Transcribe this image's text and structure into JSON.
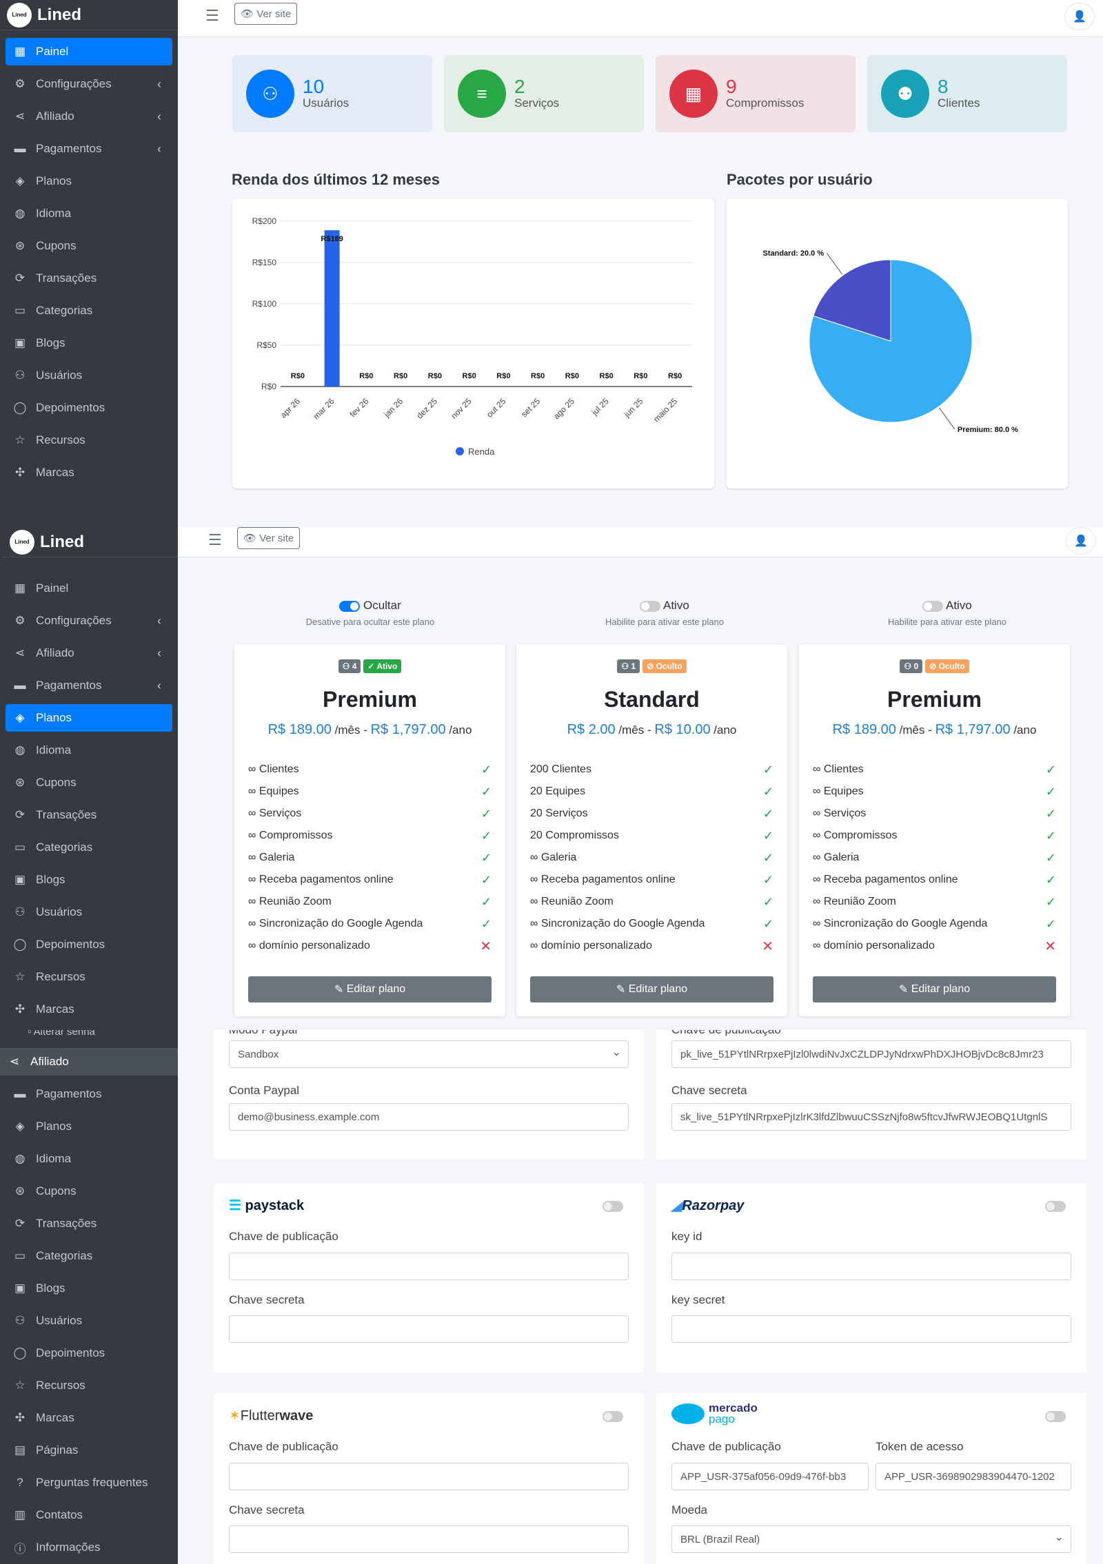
{
  "brand": {
    "logo_text": "Lined",
    "name": "Lined"
  },
  "topbar": {
    "view_site": "Ver site"
  },
  "sidebar1": [
    {
      "label": "Painel",
      "icon": "dashboard-icon",
      "active": true
    },
    {
      "label": "Configurações",
      "icon": "gear-icon",
      "arrow": "‹"
    },
    {
      "label": "Afiliado",
      "icon": "share-icon",
      "arrow": "‹"
    },
    {
      "label": "Pagamentos",
      "icon": "card-icon",
      "arrow": "‹"
    },
    {
      "label": "Planos",
      "icon": "layers-icon"
    },
    {
      "label": "Idioma",
      "icon": "globe-icon"
    },
    {
      "label": "Cupons",
      "icon": "coupon-icon"
    },
    {
      "label": "Transações",
      "icon": "transactions-icon"
    },
    {
      "label": "Categorias",
      "icon": "folder-icon"
    },
    {
      "label": "Blogs",
      "icon": "image-icon"
    },
    {
      "label": "Usuários",
      "icon": "users-icon"
    },
    {
      "label": "Depoimentos",
      "icon": "chat-icon"
    },
    {
      "label": "Recursos",
      "icon": "star-icon"
    },
    {
      "label": "Marcas",
      "icon": "brand-icon"
    }
  ],
  "sidebar2": [
    {
      "label": "Painel",
      "icon": "dashboard-icon"
    },
    {
      "label": "Configurações",
      "icon": "gear-icon",
      "arrow": "‹"
    },
    {
      "label": "Afiliado",
      "icon": "share-icon",
      "arrow": "‹"
    },
    {
      "label": "Pagamentos",
      "icon": "card-icon",
      "arrow": "‹"
    },
    {
      "label": "Planos",
      "icon": "layers-icon",
      "active": true
    },
    {
      "label": "Idioma",
      "icon": "globe-icon"
    },
    {
      "label": "Cupons",
      "icon": "coupon-icon"
    },
    {
      "label": "Transações",
      "icon": "transactions-icon"
    },
    {
      "label": "Categorias",
      "icon": "folder-icon"
    },
    {
      "label": "Blogs",
      "icon": "image-icon"
    },
    {
      "label": "Usuários",
      "icon": "users-icon"
    },
    {
      "label": "Depoimentos",
      "icon": "chat-icon"
    },
    {
      "label": "Recursos",
      "icon": "star-icon"
    },
    {
      "label": "Marcas",
      "icon": "brand-icon"
    }
  ],
  "sidebar3_top": "Alterar senha",
  "sidebar3": [
    {
      "label": "Afiliado",
      "icon": "share-icon",
      "highlight": true
    },
    {
      "label": "Pagamentos",
      "icon": "card-icon"
    },
    {
      "label": "Planos",
      "icon": "layers-icon"
    },
    {
      "label": "Idioma",
      "icon": "globe-icon"
    },
    {
      "label": "Cupons",
      "icon": "coupon-icon"
    },
    {
      "label": "Transações",
      "icon": "transactions-icon"
    },
    {
      "label": "Categorias",
      "icon": "folder-icon"
    },
    {
      "label": "Blogs",
      "icon": "image-icon"
    },
    {
      "label": "Usuários",
      "icon": "users-icon"
    },
    {
      "label": "Depoimentos",
      "icon": "chat-icon"
    },
    {
      "label": "Recursos",
      "icon": "star-icon"
    },
    {
      "label": "Marcas",
      "icon": "brand-icon"
    },
    {
      "label": "Páginas",
      "icon": "pages-icon"
    },
    {
      "label": "Perguntas frequentes",
      "icon": "question-icon"
    },
    {
      "label": "Contatos",
      "icon": "contacts-icon"
    },
    {
      "label": "Informações",
      "icon": "info-icon"
    }
  ],
  "stats": [
    {
      "value": "10",
      "label": "Usuários",
      "icon": "users-icon",
      "color": "#007bff",
      "bg": "#e3eaf8"
    },
    {
      "value": "2",
      "label": "Serviços",
      "icon": "list-icon",
      "color": "#28a745",
      "bg": "#e3efe6"
    },
    {
      "value": "9",
      "label": "Compromissos",
      "icon": "calendar-icon",
      "color": "#dc3545",
      "bg": "#f2e2e5"
    },
    {
      "value": "8",
      "label": "Clientes",
      "icon": "clients-icon",
      "color": "#17a2b8",
      "bg": "#ddecf0"
    }
  ],
  "income_title": "Renda dos últimos 12 meses",
  "packages_title": "Pacotes por usuário",
  "chart_data": [
    {
      "type": "bar",
      "categories": [
        "apr 26",
        "mar 26",
        "fev 26",
        "jan 26",
        "dez 25",
        "nov 25",
        "out 25",
        "set 25",
        "ago 25",
        "jul 25",
        "jun 25",
        "maio 25"
      ],
      "values": [
        0,
        189,
        0,
        0,
        0,
        0,
        0,
        0,
        0,
        0,
        0,
        0
      ],
      "data_labels": [
        "R$0",
        "R$189",
        "R$0",
        "R$0",
        "R$0",
        "R$0",
        "R$0",
        "R$0",
        "R$0",
        "R$0",
        "R$0",
        "R$0"
      ],
      "yticks": [
        "R$0",
        "R$50",
        "R$100",
        "R$150",
        "R$200"
      ],
      "ylim": [
        0,
        200
      ],
      "legend": "Renda",
      "legend_placement": "bottom",
      "grid": true,
      "color": "#2563eb"
    },
    {
      "type": "pie",
      "slices": [
        {
          "name": "Standard",
          "value": 20.0,
          "label": "Standard: 20.0 %",
          "color": "#4a4fc7"
        },
        {
          "name": "Premium",
          "value": 80.0,
          "label": "Premium: 80.0 %",
          "color": "#35aef5"
        }
      ]
    }
  ],
  "plan_toggles": [
    {
      "label": "Ocultar",
      "hint": "Desative para ocultar este plano",
      "on": true
    },
    {
      "label": "Ativo",
      "hint": "Habilite para ativar este plano",
      "on": false
    },
    {
      "label": "Ativo",
      "hint": "Habilite para ativar este plano",
      "on": false
    }
  ],
  "plans": [
    {
      "count": "4",
      "status": "Ativo",
      "status_type": "green",
      "name": "Premium",
      "price1": "R$ 189.00",
      "per1": "/mês",
      "sep": "-",
      "price2": "R$ 1,797.00",
      "per2": "/ano",
      "features": [
        {
          "t": "Clientes",
          "inf": true,
          "ok": true
        },
        {
          "t": "Equipes",
          "inf": true,
          "ok": true
        },
        {
          "t": "Serviços",
          "inf": true,
          "ok": true
        },
        {
          "t": "Compromissos",
          "inf": true,
          "ok": true
        },
        {
          "t": "Galeria",
          "inf": true,
          "ok": true
        },
        {
          "t": "Receba pagamentos online",
          "inf": true,
          "ok": true
        },
        {
          "t": "Reunião Zoom",
          "inf": true,
          "ok": true
        },
        {
          "t": "Sincronização do Google Agenda",
          "inf": true,
          "ok": true
        },
        {
          "t": "domínio personalizado",
          "inf": true,
          "ok": false
        }
      ],
      "button": "Editar plano"
    },
    {
      "count": "1",
      "status": "Oculto",
      "status_type": "orange",
      "name": "Standard",
      "price1": "R$ 2.00",
      "per1": "/mês",
      "sep": "-",
      "price2": "R$ 10.00",
      "per2": "/ano",
      "features": [
        {
          "t": "200 Clientes",
          "ok": true
        },
        {
          "t": "20 Equipes",
          "ok": true
        },
        {
          "t": "20 Serviços",
          "ok": true
        },
        {
          "t": "20 Compromissos",
          "ok": true
        },
        {
          "t": "Galeria",
          "inf": true,
          "ok": true
        },
        {
          "t": "Receba pagamentos online",
          "inf": true,
          "ok": true
        },
        {
          "t": "Reunião Zoom",
          "inf": true,
          "ok": true
        },
        {
          "t": "Sincronização do Google Agenda",
          "inf": true,
          "ok": true
        },
        {
          "t": "domínio personalizado",
          "inf": true,
          "ok": false
        }
      ],
      "button": "Editar plano"
    },
    {
      "count": "0",
      "status": "Oculto",
      "status_type": "orange",
      "name": "Premium",
      "price1": "R$ 189.00",
      "per1": "/mês",
      "sep": "-",
      "price2": "R$ 1,797.00",
      "per2": "/ano",
      "features": [
        {
          "t": "Clientes",
          "inf": true,
          "ok": true
        },
        {
          "t": "Equipes",
          "inf": true,
          "ok": true
        },
        {
          "t": "Serviços",
          "inf": true,
          "ok": true
        },
        {
          "t": "Compromissos",
          "inf": true,
          "ok": true
        },
        {
          "t": "Galeria",
          "inf": true,
          "ok": true
        },
        {
          "t": "Receba pagamentos online",
          "inf": true,
          "ok": true
        },
        {
          "t": "Reunião Zoom",
          "inf": true,
          "ok": true
        },
        {
          "t": "Sincronização do Google Agenda",
          "inf": true,
          "ok": true
        },
        {
          "t": "domínio personalizado",
          "inf": true,
          "ok": false
        }
      ],
      "button": "Editar plano"
    }
  ],
  "payments": {
    "paypal_mode_label": "Modo Paypal",
    "paypal_mode_value": "Sandbox",
    "paypal_account_label": "Conta Paypal",
    "paypal_account_value": "demo@business.example.com",
    "stripe_pub_label": "Chave de publicação",
    "stripe_pub_value": "pk_live_51PYtlNRrpxePjIzl0lwdiNvJxCZLDPJyNdrxwPhDXJHOBjvDc8c8Jmr23",
    "stripe_secret_label": "Chave secreta",
    "stripe_secret_value": "sk_live_51PYtlNRrpxePjIzlrK3lfdZlbwuuCSSzNjfo8w5ftcvJfwRWJEOBQ1UtgnlS",
    "paystack_logo": "paystack",
    "paystack_pub_label": "Chave de publicação",
    "paystack_secret_label": "Chave secreta",
    "razorpay_logo": "Razorpay",
    "razorpay_key_label": "key id",
    "razorpay_secret_label": "key secret",
    "flutterwave_logo_a": "Flutter",
    "flutterwave_logo_b": "wave",
    "flutter_pub_label": "Chave de publicação",
    "flutter_secret_label": "Chave secreta",
    "mercado_logo_a": "mercado",
    "mercado_logo_b": "pago",
    "mercado_pub_label": "Chave de publicação",
    "mercado_pub_value": "APP_USR-375af056-09d9-476f-bb3",
    "mercado_token_label": "Token de acesso",
    "mercado_token_value": "APP_USR-3698902983904470-1202",
    "mercado_currency_label": "Moeda",
    "mercado_currency_value": "BRL (Brazil Real)"
  }
}
